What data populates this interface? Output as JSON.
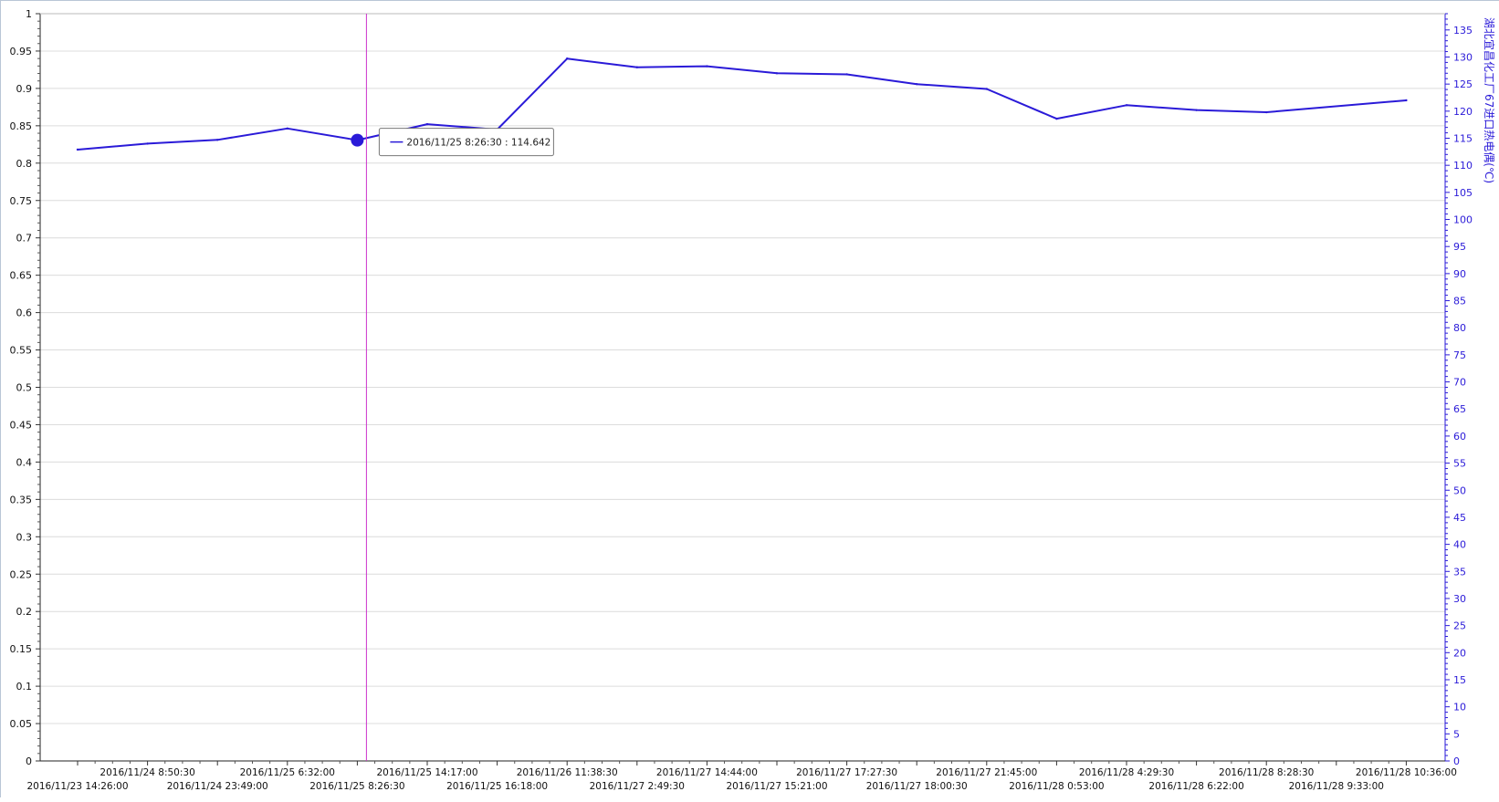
{
  "chart_data": {
    "type": "line",
    "series": [
      {
        "name": "湖北宜昌化工厂67进口热电偶(℃)",
        "color": "#2a1ad8",
        "x": [
          "2016/11/23 14:26:00",
          "2016/11/24 8:50:30",
          "2016/11/24 23:49:00",
          "2016/11/25 6:32:00",
          "2016/11/25 8:26:30",
          "2016/11/25 14:17:00",
          "2016/11/25 16:18:00",
          "2016/11/26 11:38:30",
          "2016/11/27 2:49:30",
          "2016/11/27 14:44:00",
          "2016/11/27 15:21:00",
          "2016/11/27 17:27:30",
          "2016/11/27 18:00:30",
          "2016/11/27 21:45:00",
          "2016/11/28 0:53:00",
          "2016/11/28 4:29:30",
          "2016/11/28 6:22:00",
          "2016/11/28 8:28:30",
          "2016/11/28 9:33:00",
          "2016/11/28 10:36:00"
        ],
        "values": [
          112.9,
          114.0,
          114.7,
          116.8,
          114.642,
          117.6,
          116.6,
          129.7,
          128.1,
          128.3,
          127.0,
          126.8,
          125.0,
          124.1,
          118.6,
          121.1,
          120.2,
          119.8,
          null,
          122.0
        ]
      }
    ],
    "y_left": {
      "min": 0,
      "max": 1,
      "step": 0.05,
      "ticks": [
        "0",
        "0.05",
        "0.1",
        "0.15",
        "0.2",
        "0.25",
        "0.3",
        "0.35",
        "0.4",
        "0.45",
        "0.5",
        "0.55",
        "0.6",
        "0.65",
        "0.7",
        "0.75",
        "0.8",
        "0.85",
        "0.9",
        "0.95",
        "1"
      ]
    },
    "y_right": {
      "label": "湖北宜昌化工厂67进口热电偶(℃)",
      "min": 0,
      "max": 138,
      "step": 5,
      "ticks": [
        "0",
        "5",
        "10",
        "15",
        "20",
        "25",
        "30",
        "35",
        "40",
        "45",
        "50",
        "55",
        "60",
        "65",
        "70",
        "75",
        "80",
        "85",
        "90",
        "95",
        "100",
        "105",
        "110",
        "115",
        "120",
        "125",
        "130",
        "135"
      ],
      "color": "#2a1ad8"
    },
    "x_ticks_upper": [
      "2016/11/24 8:50:30",
      "2016/11/25 6:32:00",
      "2016/11/25 14:17:00",
      "2016/11/26 11:38:30",
      "2016/11/27 14:44:00",
      "2016/11/27 17:27:30",
      "2016/11/27 21:45:00",
      "2016/11/28 4:29:30",
      "2016/11/28 8:28:30",
      "2016/11/28 10:36:00"
    ],
    "x_ticks_lower": [
      "2016/11/23 14:26:00",
      "2016/11/24 23:49:00",
      "2016/11/25 8:26:30",
      "2016/11/25 16:18:00",
      "2016/11/27 2:49:30",
      "2016/11/27 15:21:00",
      "2016/11/27 18:00:30",
      "2016/11/28 0:53:00",
      "2016/11/28 6:22:00",
      "2016/11/28 9:33:00"
    ],
    "grid": true,
    "legend": "none",
    "cursor": {
      "x": "2016/11/25 8:26:30",
      "color": "#cc33cc",
      "tooltip": "2016/11/25 8:26:30 : 114.642"
    }
  }
}
